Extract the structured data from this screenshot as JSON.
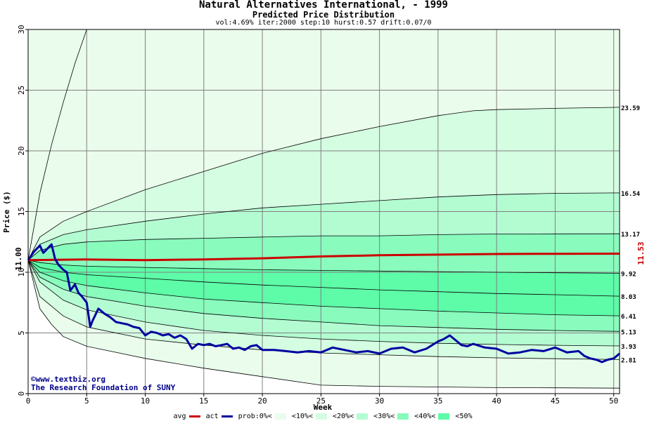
{
  "title": "Natural Alternatives International, - 1999",
  "subtitle": "Predicted Price Distribution",
  "params": "vol:4.69% iter:2000 step:10 hurst:0.57 drift:0.07/0",
  "watermark": {
    "line1": "©www.textbiz.org",
    "line2": "The Research Foundation of SUNY"
  },
  "legend": {
    "avg": "avg",
    "act": "act",
    "prob": "prob:0%<",
    "p10": "<10%<",
    "p20": "<20%<",
    "p30": "<30%<",
    "p40": "<40%<",
    "p50": "<50%"
  },
  "chart_data": {
    "type": "area",
    "title": "Natural Alternatives International, - 1999",
    "subtitle": "Predicted Price Distribution",
    "xlabel": "Week",
    "ylabel": "Price ($)",
    "xlim": [
      0,
      50.5
    ],
    "ylim": [
      0,
      30
    ],
    "xticks": [
      0,
      5,
      10,
      15,
      20,
      25,
      30,
      35,
      40,
      45,
      50
    ],
    "yticks": [
      5,
      10,
      15,
      20,
      25,
      30
    ],
    "grid": true,
    "start_value": "11.00",
    "avg_end_value": "11.53",
    "end_labels": [
      "23.59",
      "16.54",
      "13.17",
      "9.92",
      "8.03",
      "6.41",
      "5.13",
      "3.93",
      "2.81"
    ],
    "colors": {
      "avg": "#cc0000",
      "act": "#0000a0",
      "band_0_10": "#eafcec",
      "band_10_20": "#d4fde2",
      "band_20_30": "#b3fcd2",
      "band_30_40": "#89fbbd",
      "band_40_50": "#5efba8",
      "background": "#ffffff",
      "grid": "#808080"
    },
    "percentile_curves": [
      {
        "x": [
          0,
          1,
          2,
          3,
          4,
          5
        ],
        "values": [
          11.0,
          16.5,
          20.5,
          24.0,
          27.2,
          30.0
        ]
      },
      {
        "x": [
          0,
          1,
          3,
          5,
          10,
          15,
          20,
          25,
          30,
          35,
          38,
          40,
          45,
          50.5
        ],
        "values": [
          11.0,
          12.9,
          14.2,
          15.0,
          16.8,
          18.3,
          19.8,
          21.0,
          22.0,
          22.9,
          23.3,
          23.4,
          23.5,
          23.59
        ]
      },
      {
        "x": [
          0,
          1,
          3,
          5,
          10,
          15,
          20,
          25,
          30,
          35,
          40,
          45,
          50.5
        ],
        "values": [
          11.0,
          12.3,
          13.1,
          13.5,
          14.2,
          14.8,
          15.3,
          15.6,
          15.9,
          16.2,
          16.4,
          16.5,
          16.54
        ]
      },
      {
        "x": [
          0,
          1,
          3,
          5,
          10,
          15,
          20,
          25,
          30,
          35,
          40,
          45,
          50.5
        ],
        "values": [
          11.0,
          11.8,
          12.3,
          12.5,
          12.7,
          12.8,
          12.9,
          13.0,
          13.0,
          13.1,
          13.15,
          13.16,
          13.17
        ]
      },
      {
        "x": [
          0,
          1,
          3,
          5,
          10,
          15,
          20,
          25,
          30,
          35,
          40,
          45,
          50.5
        ],
        "values": [
          11.0,
          10.8,
          10.6,
          10.5,
          10.4,
          10.3,
          10.2,
          10.15,
          10.1,
          10.05,
          10.0,
          9.96,
          9.92
        ]
      },
      {
        "x": [
          0,
          1,
          3,
          5,
          10,
          15,
          20,
          25,
          30,
          35,
          40,
          45,
          50.5
        ],
        "values": [
          11.0,
          10.4,
          10.0,
          9.8,
          9.5,
          9.2,
          8.95,
          8.75,
          8.55,
          8.4,
          8.25,
          8.15,
          8.03
        ]
      },
      {
        "x": [
          0,
          1,
          3,
          5,
          10,
          15,
          20,
          25,
          30,
          35,
          40,
          45,
          50.5
        ],
        "values": [
          11.0,
          10.0,
          9.3,
          8.9,
          8.3,
          7.8,
          7.5,
          7.2,
          7.0,
          6.8,
          6.65,
          6.5,
          6.41
        ]
      },
      {
        "x": [
          0,
          1,
          3,
          5,
          10,
          15,
          20,
          25,
          30,
          35,
          40,
          45,
          50.5
        ],
        "values": [
          11.0,
          9.6,
          8.6,
          8.0,
          7.2,
          6.6,
          6.2,
          5.9,
          5.6,
          5.45,
          5.3,
          5.2,
          5.13
        ]
      },
      {
        "x": [
          0,
          1,
          3,
          5,
          10,
          15,
          20,
          25,
          30,
          35,
          40,
          45,
          50.5
        ],
        "values": [
          11.0,
          9.2,
          7.7,
          6.9,
          5.9,
          5.2,
          4.8,
          4.5,
          4.3,
          4.15,
          4.05,
          3.98,
          3.93
        ]
      },
      {
        "x": [
          0,
          1,
          3,
          5,
          10,
          15,
          20,
          25,
          30,
          35,
          40,
          45,
          50.5
        ],
        "values": [
          11.0,
          8.0,
          6.4,
          5.5,
          4.5,
          4.0,
          3.6,
          3.35,
          3.2,
          3.05,
          2.95,
          2.88,
          2.81
        ]
      },
      {
        "x": [
          0,
          1,
          2,
          3,
          5,
          10,
          15,
          20,
          25,
          30,
          35,
          40,
          45,
          50.5
        ],
        "values": [
          11.0,
          7.0,
          5.7,
          4.7,
          3.9,
          2.9,
          2.1,
          1.4,
          0.7,
          0.6,
          0.55,
          0.5,
          0.48,
          0.45
        ]
      }
    ],
    "series": [
      {
        "name": "avg",
        "x": [
          0,
          5,
          10,
          15,
          20,
          25,
          30,
          35,
          40,
          45,
          50.5
        ],
        "values": [
          11.0,
          11.05,
          11.0,
          11.05,
          11.15,
          11.3,
          11.4,
          11.45,
          11.5,
          11.52,
          11.53
        ]
      },
      {
        "name": "act",
        "x": [
          0,
          0.5,
          1,
          1.3,
          1.7,
          2,
          2.3,
          2.6,
          3,
          3.3,
          3.6,
          4,
          4.3,
          4.6,
          5,
          5.3,
          5.5,
          6,
          6.5,
          7,
          7.5,
          8,
          8.5,
          9,
          9.5,
          10,
          10.5,
          11,
          11.5,
          12,
          12.5,
          13,
          13.5,
          14,
          14.5,
          15,
          15.5,
          16,
          16.5,
          17,
          17.5,
          18,
          18.5,
          19,
          19.5,
          20,
          21,
          22,
          23,
          24,
          25,
          25.5,
          26,
          27,
          28,
          29,
          30,
          31,
          32,
          33,
          34,
          35,
          35.5,
          36,
          36.5,
          37,
          37.5,
          38,
          39,
          40,
          41,
          42,
          43,
          44,
          45,
          46,
          47,
          47.5,
          48,
          48.5,
          49,
          49.5,
          50,
          50.5
        ],
        "values": [
          11.0,
          11.7,
          12.2,
          11.6,
          12.0,
          12.3,
          11.1,
          10.6,
          10.2,
          10.0,
          8.5,
          9.0,
          8.3,
          8.0,
          7.5,
          5.5,
          6.0,
          7.0,
          6.6,
          6.3,
          5.9,
          5.8,
          5.7,
          5.5,
          5.4,
          4.8,
          5.1,
          5.0,
          4.8,
          4.9,
          4.6,
          4.8,
          4.5,
          3.7,
          4.1,
          4.0,
          4.1,
          3.9,
          4.0,
          4.1,
          3.7,
          3.8,
          3.6,
          3.9,
          4.0,
          3.6,
          3.6,
          3.5,
          3.4,
          3.5,
          3.4,
          3.6,
          3.8,
          3.6,
          3.4,
          3.5,
          3.3,
          3.7,
          3.8,
          3.4,
          3.7,
          4.3,
          4.5,
          4.8,
          4.4,
          4.0,
          3.9,
          4.1,
          3.8,
          3.7,
          3.3,
          3.4,
          3.6,
          3.5,
          3.8,
          3.4,
          3.5,
          3.1,
          2.9,
          2.8,
          2.6,
          2.8,
          2.9,
          3.3
        ]
      }
    ]
  }
}
